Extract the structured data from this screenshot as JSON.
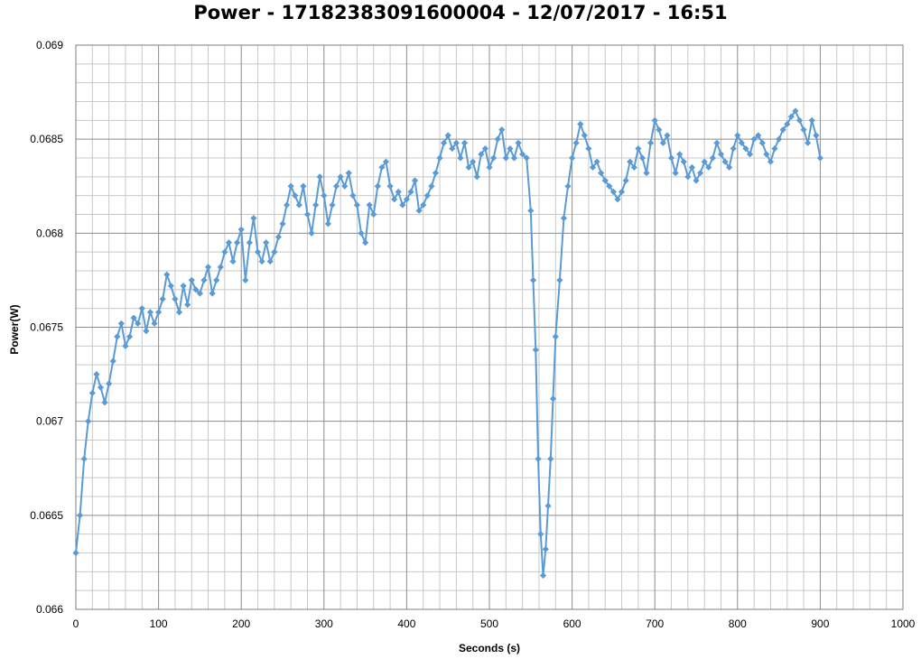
{
  "chart_data": {
    "type": "line",
    "title": "Power - 17182383091600004 - 12/07/2017 - 16:51",
    "xlabel": "Seconds (s)",
    "ylabel": "Power(W)",
    "xlim": [
      0,
      1000
    ],
    "ylim": [
      0.066,
      0.069
    ],
    "x_ticks": [
      "0",
      "100",
      "200",
      "300",
      "400",
      "500",
      "600",
      "700",
      "800",
      "900",
      "1000"
    ],
    "y_ticks": [
      "0.066",
      "0.0665",
      "0.067",
      "0.0675",
      "0.068",
      "0.0685",
      "0.069"
    ],
    "grid": true,
    "legend": "none",
    "marker": "diamond",
    "series_color": "#5b9bd5",
    "series": [
      {
        "x": [
          0,
          5,
          10,
          15,
          20,
          25,
          30,
          35,
          40,
          45,
          50,
          55,
          60,
          65,
          70,
          75,
          80,
          85,
          90,
          95,
          100,
          105,
          110,
          115,
          120,
          125,
          130,
          135,
          140,
          145,
          150,
          155,
          160,
          165,
          170,
          175,
          180,
          185,
          190,
          195,
          200,
          205,
          210,
          215,
          220,
          225,
          230,
          235,
          240,
          245,
          250,
          255,
          260,
          265,
          270,
          275,
          280,
          285,
          290,
          295,
          300,
          305,
          310,
          315,
          320,
          325,
          330,
          335,
          340,
          345,
          350,
          355,
          360,
          365,
          370,
          375,
          380,
          385,
          390,
          395,
          400,
          405,
          410,
          415,
          420,
          425,
          430,
          435,
          440,
          445,
          450,
          455,
          460,
          465,
          470,
          475,
          480,
          485,
          490,
          495,
          500,
          505,
          510,
          515,
          520,
          525,
          530,
          535,
          540,
          545,
          550,
          553,
          556,
          559,
          562,
          565,
          568,
          571,
          574,
          577,
          580,
          585,
          590,
          595,
          600,
          605,
          610,
          615,
          620,
          625,
          630,
          635,
          640,
          645,
          650,
          655,
          660,
          665,
          670,
          675,
          680,
          685,
          690,
          695,
          700,
          705,
          710,
          715,
          720,
          725,
          730,
          735,
          740,
          745,
          750,
          755,
          760,
          765,
          770,
          775,
          780,
          785,
          790,
          795,
          800,
          805,
          810,
          815,
          820,
          825,
          830,
          835,
          840,
          845,
          850,
          855,
          860,
          865,
          870,
          875,
          880,
          885,
          890,
          895,
          900
        ],
        "values": [
          0.0663,
          0.0665,
          0.0668,
          0.067,
          0.06715,
          0.06725,
          0.06718,
          0.0671,
          0.0672,
          0.06732,
          0.06745,
          0.06752,
          0.0674,
          0.06745,
          0.06755,
          0.06752,
          0.0676,
          0.06748,
          0.06758,
          0.06752,
          0.06758,
          0.06765,
          0.06778,
          0.06772,
          0.06765,
          0.06758,
          0.06772,
          0.06762,
          0.06775,
          0.0677,
          0.06768,
          0.06775,
          0.06782,
          0.06768,
          0.06775,
          0.06782,
          0.0679,
          0.06795,
          0.06785,
          0.06795,
          0.06802,
          0.06775,
          0.06795,
          0.06808,
          0.0679,
          0.06785,
          0.06795,
          0.06785,
          0.0679,
          0.06798,
          0.06805,
          0.06815,
          0.06825,
          0.0682,
          0.06815,
          0.06825,
          0.0681,
          0.068,
          0.06815,
          0.0683,
          0.0682,
          0.06805,
          0.06815,
          0.06825,
          0.0683,
          0.06825,
          0.06832,
          0.0682,
          0.06815,
          0.068,
          0.06795,
          0.06815,
          0.0681,
          0.06825,
          0.06835,
          0.06838,
          0.06825,
          0.06818,
          0.06822,
          0.06815,
          0.06818,
          0.06822,
          0.06828,
          0.06812,
          0.06815,
          0.0682,
          0.06825,
          0.06832,
          0.0684,
          0.06848,
          0.06852,
          0.06845,
          0.06848,
          0.0684,
          0.06848,
          0.06835,
          0.06838,
          0.0683,
          0.06842,
          0.06845,
          0.06835,
          0.0684,
          0.0685,
          0.06855,
          0.0684,
          0.06845,
          0.0684,
          0.06848,
          0.06842,
          0.0684,
          0.06812,
          0.06775,
          0.06738,
          0.0668,
          0.0664,
          0.06618,
          0.06632,
          0.06655,
          0.0668,
          0.06712,
          0.06745,
          0.06775,
          0.06808,
          0.06825,
          0.0684,
          0.06848,
          0.06858,
          0.06852,
          0.06845,
          0.06835,
          0.06838,
          0.06832,
          0.06828,
          0.06825,
          0.06822,
          0.06818,
          0.06822,
          0.06828,
          0.06838,
          0.06835,
          0.06845,
          0.0684,
          0.06832,
          0.06848,
          0.0686,
          0.06855,
          0.06848,
          0.06852,
          0.0684,
          0.06832,
          0.06842,
          0.06838,
          0.0683,
          0.06835,
          0.06828,
          0.06832,
          0.06838,
          0.06835,
          0.0684,
          0.06848,
          0.06842,
          0.06838,
          0.06835,
          0.06845,
          0.06852,
          0.06848,
          0.06845,
          0.06842,
          0.0685,
          0.06852,
          0.06848,
          0.06842,
          0.06838,
          0.06845,
          0.0685,
          0.06855,
          0.06858,
          0.06862,
          0.06865,
          0.0686,
          0.06855,
          0.06848,
          0.0686,
          0.06852,
          0.0684
        ]
      }
    ]
  }
}
